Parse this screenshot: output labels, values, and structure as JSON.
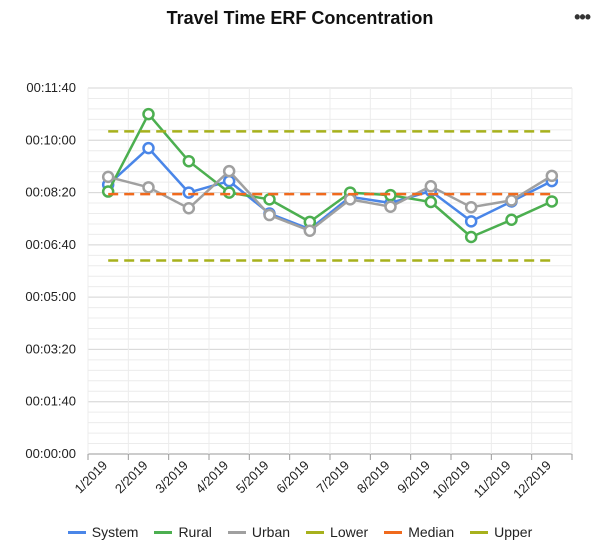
{
  "header": {
    "title": "Travel Time ERF Concentration",
    "menu_icon": "more-horizontal-icon"
  },
  "chart_data": {
    "type": "line",
    "title": "Travel Time ERF Concentration",
    "xlabel": "",
    "ylabel": "",
    "categories": [
      "1/2019",
      "2/2019",
      "3/2019",
      "4/2019",
      "5/2019",
      "6/2019",
      "7/2019",
      "8/2019",
      "9/2019",
      "10/2019",
      "11/2019",
      "12/2019"
    ],
    "y_unit": "seconds (shown as hh:mm:ss)",
    "ylim": [
      0,
      700
    ],
    "y_ticks": [
      0,
      100,
      200,
      300,
      400,
      500,
      600,
      700
    ],
    "y_tick_labels": [
      "00:00:00",
      "00:01:40",
      "00:03:20",
      "00:05:00",
      "00:06:40",
      "00:08:20",
      "00:10:00",
      "00:11:40"
    ],
    "grid": true,
    "legend_position": "bottom",
    "series": [
      {
        "name": "System",
        "color": "#4a86e8",
        "style": "solid-markers",
        "values": [
          515,
          585,
          500,
          522,
          460,
          430,
          492,
          480,
          503,
          445,
          483,
          522
        ]
      },
      {
        "name": "Rural",
        "color": "#4caf50",
        "style": "solid-markers",
        "values": [
          502,
          650,
          560,
          500,
          487,
          444,
          500,
          495,
          482,
          415,
          448,
          483
        ]
      },
      {
        "name": "Urban",
        "color": "#a0a0a0",
        "style": "solid-markers",
        "values": [
          530,
          510,
          470,
          541,
          457,
          427,
          487,
          473,
          512,
          472,
          485,
          532
        ]
      },
      {
        "name": "Lower",
        "color": "#a7b11c",
        "style": "dashed",
        "values": [
          370,
          370,
          370,
          370,
          370,
          370,
          370,
          370,
          370,
          370,
          370,
          370
        ]
      },
      {
        "name": "Median",
        "color": "#f06a1d",
        "style": "dashed",
        "values": [
          497,
          497,
          497,
          497,
          497,
          497,
          497,
          497,
          497,
          497,
          497,
          497
        ]
      },
      {
        "name": "Upper",
        "color": "#a7b11c",
        "style": "dashed",
        "values": [
          617,
          617,
          617,
          617,
          617,
          617,
          617,
          617,
          617,
          617,
          617,
          617
        ]
      }
    ]
  }
}
